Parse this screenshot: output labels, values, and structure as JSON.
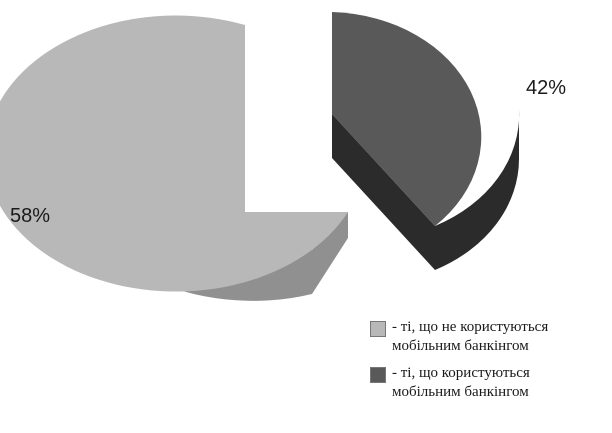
{
  "chart_data": {
    "type": "pie",
    "style": "3d-exploded",
    "slices": [
      {
        "label": "58%",
        "value": 58,
        "legend": "- ті, що не користуються мобільним банкінгом",
        "color": "#b8b8b8",
        "side_color": "#909090"
      },
      {
        "label": "42%",
        "value": 42,
        "legend": "- ті, що користуються мобільним банкінгом",
        "color": "#595959",
        "side_color": "#2b2b2b"
      }
    ],
    "legend_position": "bottom-right"
  },
  "legend": {
    "items": [
      {
        "line1": "- ті, що не користуються",
        "line2": "мобільним банкінгом",
        "color": "#b8b8b8"
      },
      {
        "line1": "- ті, що користуються",
        "line2": "мобільним банкінгом",
        "color": "#595959"
      }
    ]
  }
}
